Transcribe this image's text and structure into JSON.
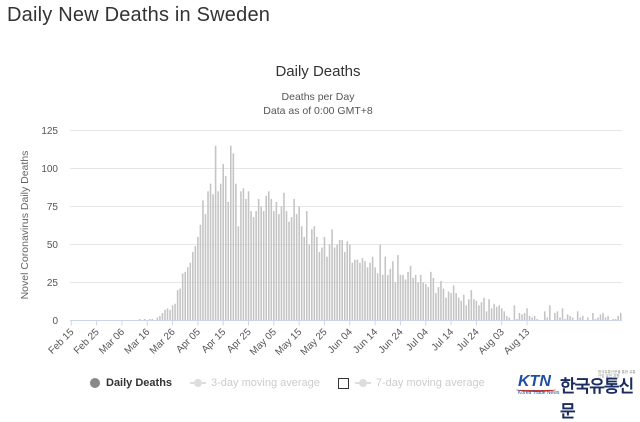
{
  "page": {
    "title": "Daily New Deaths in Sweden"
  },
  "chart_data": {
    "type": "bar",
    "title": "Daily Deaths",
    "subtitle_line1": "Deaths per Day",
    "subtitle_line2": "Data as of 0:00 GMT+8",
    "ylabel": "Novel Coronavirus Daily Deaths",
    "xlabel": "",
    "ylim": [
      0,
      125
    ],
    "yticks": [
      "0",
      "25",
      "50",
      "75",
      "100",
      "125"
    ],
    "xtick_labels": [
      "Feb 15",
      "Feb 25",
      "Mar 06",
      "Mar 16",
      "Mar 26",
      "Apr 05",
      "Apr 15",
      "Apr 25",
      "May 05",
      "May 15",
      "May 25",
      "Jun 04",
      "Jun 14",
      "Jun 24",
      "Jul 04",
      "Jul 14",
      "Jul 24",
      "Aug 03",
      "Aug 13"
    ],
    "start_label": "Feb 15",
    "bar_color": "#c4c4c4",
    "grid": true,
    "series": [
      {
        "name": "Daily Deaths",
        "values": [
          0,
          0,
          0,
          0,
          0,
          0,
          0,
          0,
          0,
          0,
          0,
          0,
          0,
          0,
          0,
          0,
          0,
          0,
          0,
          0,
          0,
          0,
          0,
          0,
          0,
          0,
          0,
          1,
          0,
          1,
          0,
          1,
          1,
          0,
          2,
          3,
          5,
          7,
          8,
          7,
          10,
          11,
          20,
          21,
          31,
          32,
          35,
          38,
          45,
          49,
          55,
          63,
          79,
          70,
          85,
          90,
          83,
          115,
          85,
          90,
          103,
          95,
          78,
          115,
          110,
          90,
          62,
          85,
          87,
          80,
          85,
          72,
          68,
          72,
          80,
          75,
          72,
          82,
          85,
          80,
          72,
          78,
          70,
          75,
          84,
          72,
          65,
          68,
          80,
          70,
          75,
          62,
          55,
          72,
          50,
          60,
          62,
          55,
          45,
          48,
          55,
          42,
          50,
          60,
          48,
          50,
          53,
          53,
          45,
          52,
          50,
          38,
          40,
          40,
          38,
          41,
          39,
          35,
          38,
          42,
          35,
          31,
          50,
          30,
          42,
          30,
          34,
          39,
          25,
          43,
          30,
          30,
          27,
          32,
          36,
          28,
          30,
          25,
          30,
          25,
          24,
          22,
          32,
          28,
          18,
          22,
          26,
          21,
          15,
          19,
          18,
          23,
          18,
          15,
          13,
          17,
          10,
          14,
          20,
          14,
          13,
          10,
          12,
          15,
          6,
          14,
          8,
          11,
          9,
          10,
          8,
          6,
          3,
          2,
          0,
          10,
          1,
          5,
          4,
          5,
          8,
          3,
          2,
          3,
          1,
          0,
          0,
          6,
          2,
          10,
          0,
          5,
          6,
          2,
          8,
          1,
          4,
          3,
          2,
          0,
          6,
          2,
          3,
          0,
          2,
          0,
          5,
          1,
          2,
          4,
          5,
          2,
          3,
          0,
          1,
          1,
          3,
          5
        ]
      }
    ],
    "legend": [
      {
        "label": "Daily Deaths",
        "active": true
      },
      {
        "label": "3-day moving average",
        "active": false
      },
      {
        "label": "7-day moving average",
        "active": false
      }
    ]
  },
  "logo": {
    "ktn": "KTN",
    "korean": "한국유통신문",
    "tagline": "Korea Trade News",
    "fine_print": "한국유통신문을 통한 유통산업 발전 지원"
  }
}
